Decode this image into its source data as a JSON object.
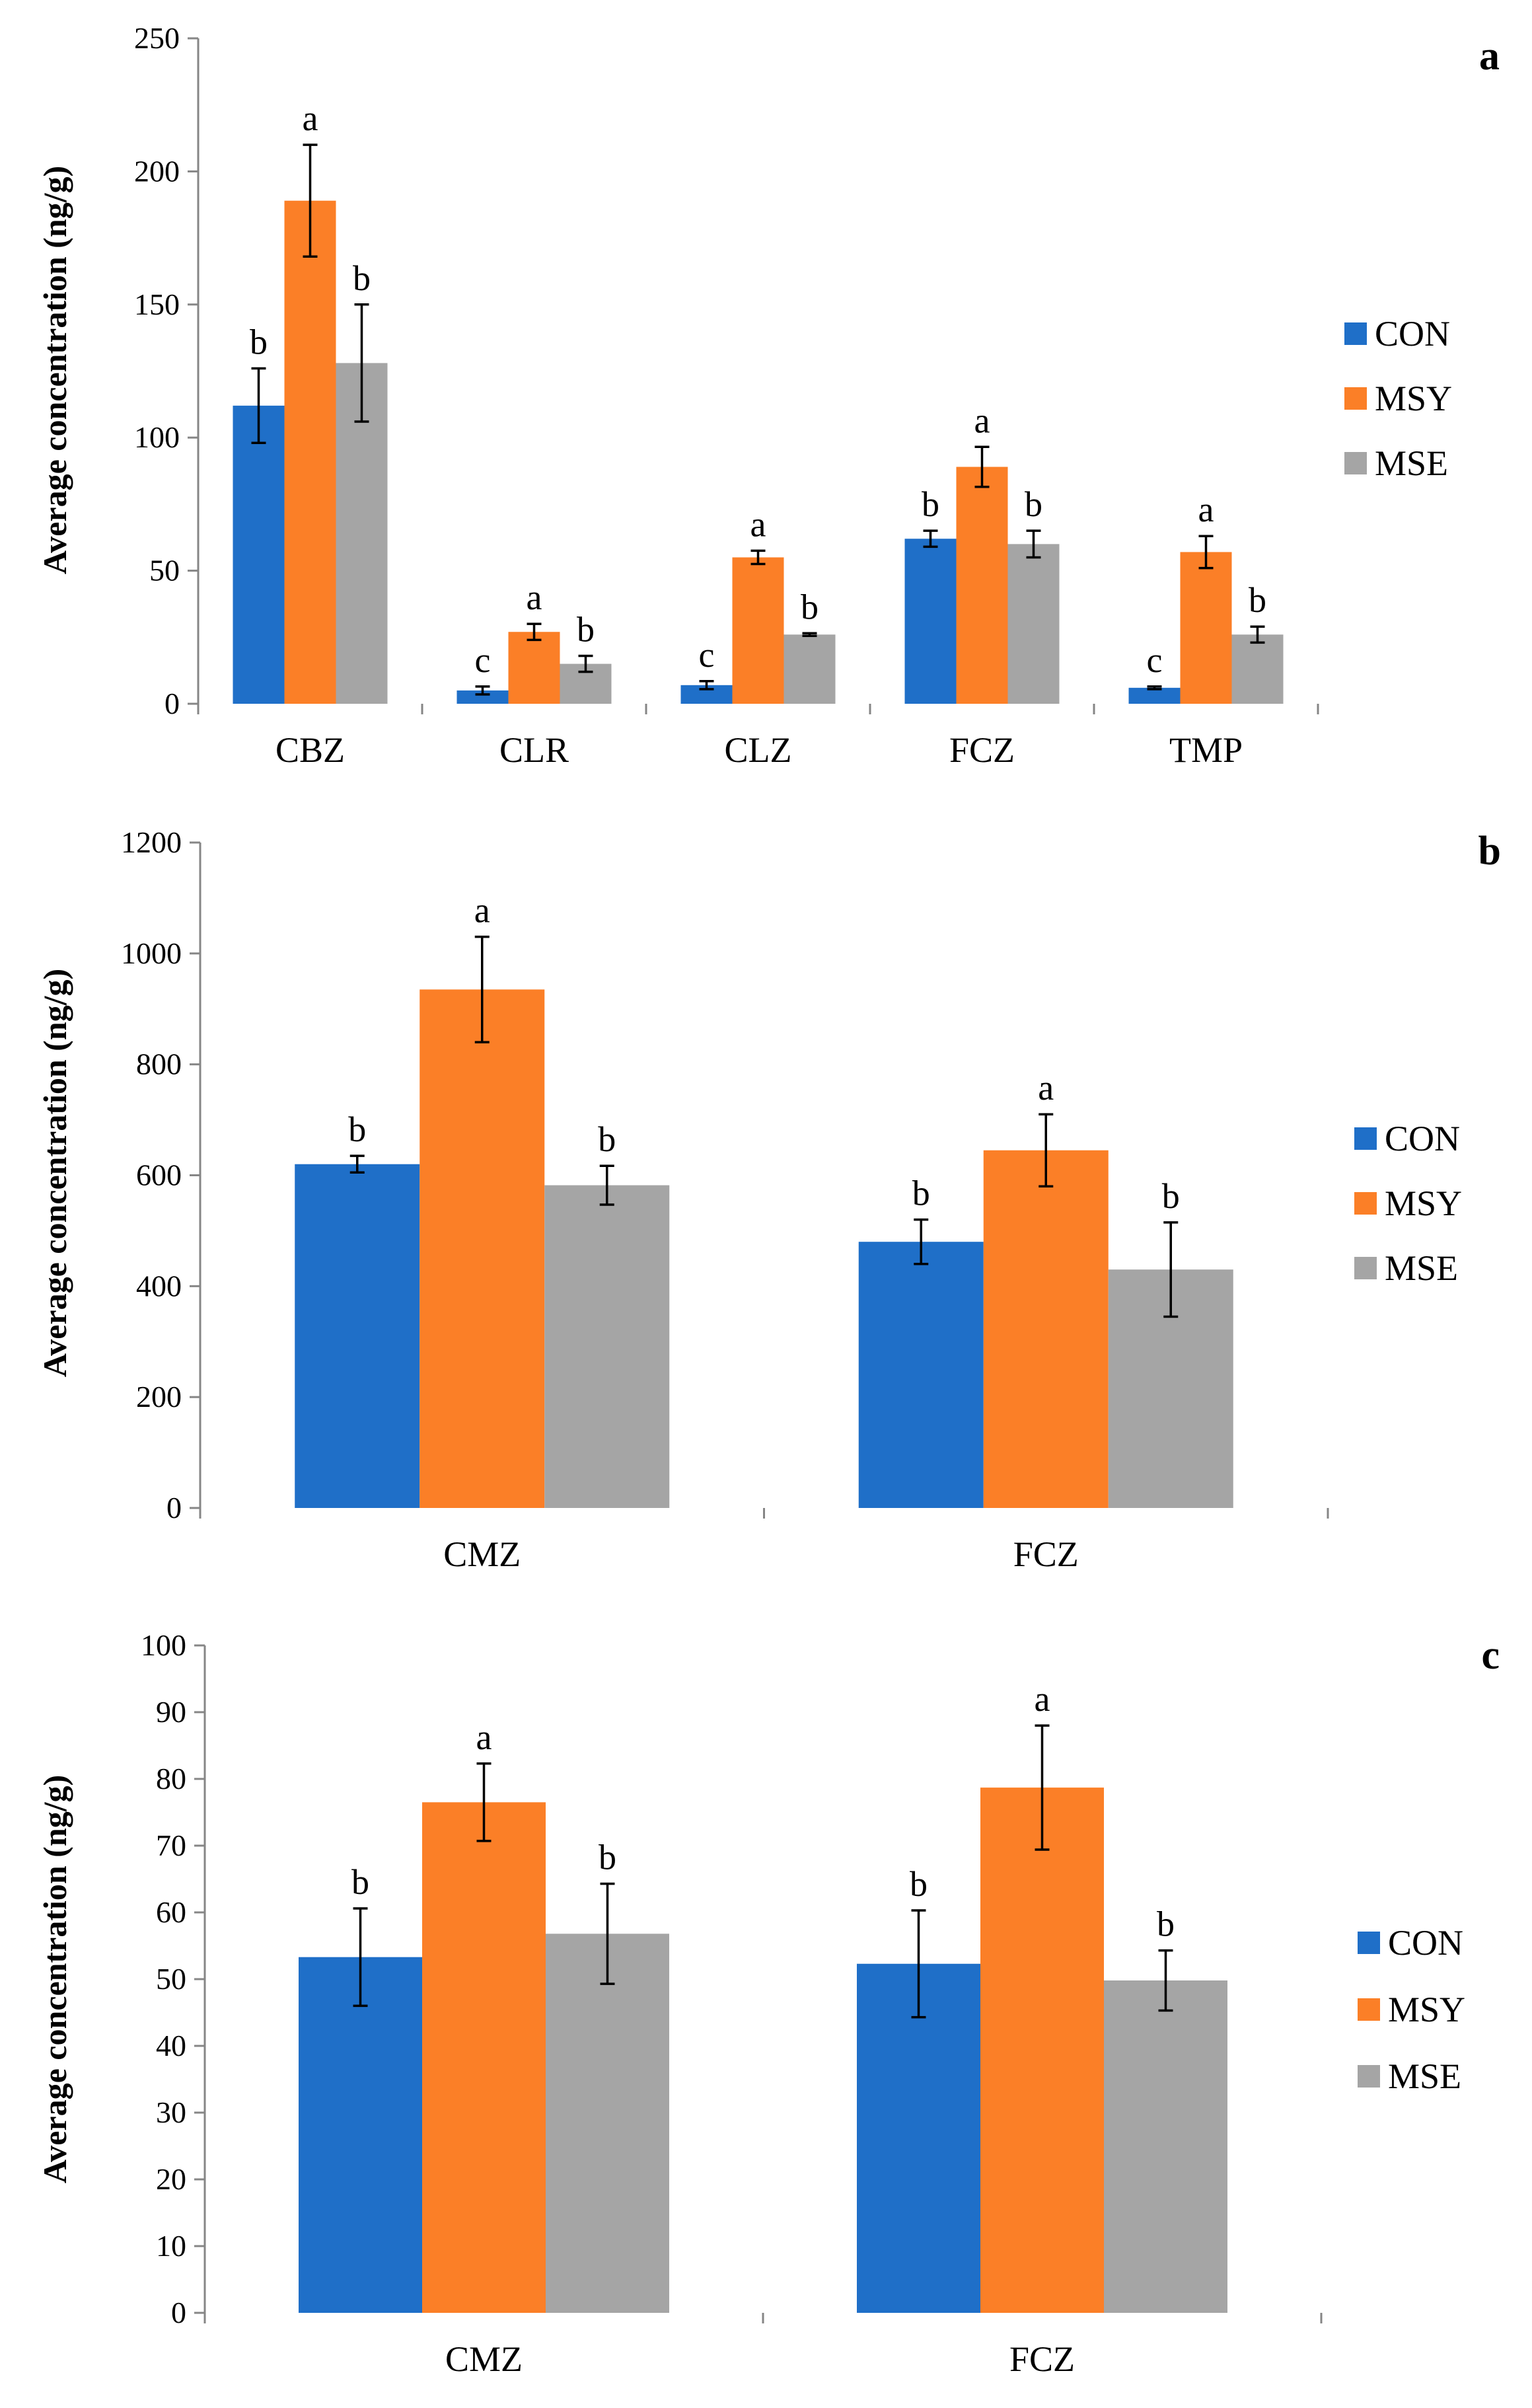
{
  "colors": {
    "CON": "#1f6fc8",
    "MSY": "#fb7f27",
    "MSE": "#a5a5a5"
  },
  "chart_data": [
    {
      "panel": "a",
      "type": "bar",
      "ylabel": "Average concentration (ng/g)",
      "ylim": [
        0,
        250
      ],
      "yticks": [
        0,
        50,
        100,
        150,
        200,
        250
      ],
      "categories": [
        "CBZ",
        "CLR",
        "CLZ",
        "FCZ",
        "TMP"
      ],
      "legend": "right",
      "series": [
        {
          "name": "CON",
          "values": [
            112,
            5,
            7,
            62,
            6
          ],
          "errors": [
            14,
            1.5,
            1.5,
            3,
            0.5
          ],
          "letters": [
            "b",
            "c",
            "c",
            "b",
            "c"
          ]
        },
        {
          "name": "MSY",
          "values": [
            189,
            27,
            55,
            89,
            57
          ],
          "errors": [
            21,
            3,
            2.5,
            7.5,
            6
          ],
          "letters": [
            "a",
            "a",
            "a",
            "a",
            "a"
          ]
        },
        {
          "name": "MSE",
          "values": [
            128,
            15,
            26,
            60,
            26
          ],
          "errors": [
            22,
            3,
            0.5,
            5,
            3
          ],
          "letters": [
            "b",
            "b",
            "b",
            "b",
            "b"
          ]
        }
      ]
    },
    {
      "panel": "b",
      "type": "bar",
      "ylabel": "Average concentration (ng/g)",
      "ylim": [
        0,
        1200
      ],
      "yticks": [
        0,
        200,
        400,
        600,
        800,
        1000,
        1200
      ],
      "categories": [
        "CMZ",
        "FCZ"
      ],
      "legend": "right",
      "series": [
        {
          "name": "CON",
          "values": [
            620,
            480
          ],
          "errors": [
            15,
            40
          ],
          "letters": [
            "b",
            "b"
          ]
        },
        {
          "name": "MSY",
          "values": [
            935,
            645
          ],
          "errors": [
            95,
            65
          ],
          "letters": [
            "a",
            "a"
          ]
        },
        {
          "name": "MSE",
          "values": [
            582,
            430
          ],
          "errors": [
            35,
            85
          ],
          "letters": [
            "b",
            "b"
          ]
        }
      ]
    },
    {
      "panel": "c",
      "type": "bar",
      "ylabel": "Average concentration (ng/g)",
      "ylim": [
        0,
        100
      ],
      "yticks": [
        0,
        10,
        20,
        30,
        40,
        50,
        60,
        70,
        80,
        90,
        100
      ],
      "categories": [
        "CMZ",
        "FCZ"
      ],
      "legend": "right",
      "series": [
        {
          "name": "CON",
          "values": [
            53.3,
            52.3
          ],
          "errors": [
            7.3,
            8
          ],
          "letters": [
            "b",
            "b"
          ]
        },
        {
          "name": "MSY",
          "values": [
            76.5,
            78.7
          ],
          "errors": [
            5.8,
            9.3
          ],
          "letters": [
            "a",
            "a"
          ]
        },
        {
          "name": "MSE",
          "values": [
            56.8,
            49.8
          ],
          "errors": [
            7.5,
            4.5
          ],
          "letters": [
            "b",
            "b"
          ]
        }
      ]
    }
  ]
}
